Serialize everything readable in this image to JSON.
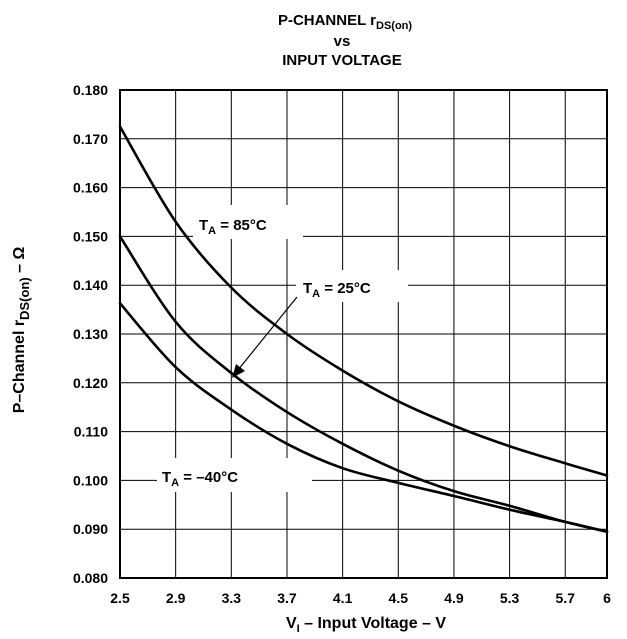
{
  "title": {
    "line1_main": "P-CHANNEL r",
    "line1_sub": "DS(on)",
    "line2": "vs",
    "line3": "INPUT VOLTAGE"
  },
  "chart_data": {
    "type": "line",
    "x": [
      2.5,
      2.9,
      3.3,
      3.7,
      4.1,
      4.5,
      4.9,
      5.3,
      5.7,
      6.0
    ],
    "xticks": [
      "2.5",
      "2.9",
      "3.3",
      "3.7",
      "4.1",
      "4.5",
      "4.9",
      "5.3",
      "5.7",
      "6"
    ],
    "yticks": [
      "0.080",
      "0.090",
      "0.100",
      "0.110",
      "0.120",
      "0.130",
      "0.140",
      "0.150",
      "0.160",
      "0.170",
      "0.180"
    ],
    "xlim": [
      2.5,
      6.0
    ],
    "ylim": [
      0.08,
      0.18
    ],
    "grid": true,
    "xlabel": {
      "prefix": "V",
      "sub": "I",
      "suffix": " – Input Voltage – V"
    },
    "ylabel": {
      "prefix": "P–Channel r",
      "sub": "DS(on)",
      "suffix": " – Ω"
    },
    "series": [
      {
        "name": "T_A = 85°C",
        "values": [
          0.1725,
          0.153,
          0.1395,
          0.13,
          0.1225,
          0.1162,
          0.1112,
          0.107,
          0.1035,
          0.101
        ]
      },
      {
        "name": "T_A = 25°C",
        "values": [
          0.15,
          0.1325,
          0.122,
          0.114,
          0.1075,
          0.102,
          0.0978,
          0.0948,
          0.0915,
          0.0895
        ]
      },
      {
        "name": "T_A = –40°C",
        "values": [
          0.1363,
          0.1232,
          0.1145,
          0.1075,
          0.1025,
          0.0995,
          0.0968,
          0.094,
          0.0915,
          0.0895
        ]
      }
    ],
    "annotations": [
      {
        "text_main": "T",
        "text_sub": "A",
        "text_rest": " = 85°C",
        "series": 0
      },
      {
        "text_main": "T",
        "text_sub": "A",
        "text_rest": " = 25°C",
        "series": 1
      },
      {
        "text_main": "T",
        "text_sub": "A",
        "text_rest": " = –40°C",
        "series": 2
      }
    ]
  }
}
